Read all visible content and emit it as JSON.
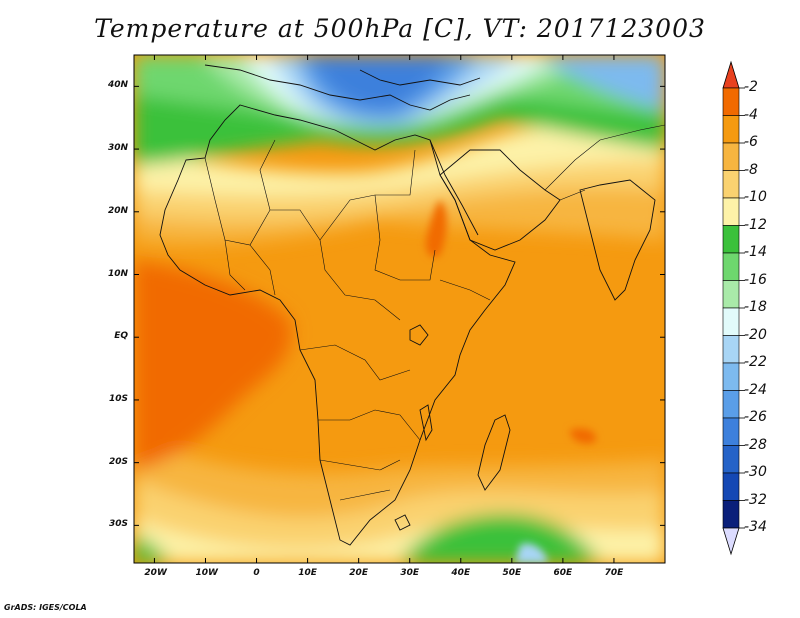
{
  "title": "Temperature at 500hPa [C], VT: 2017123003",
  "credit": "GrADS: IGES/COLA",
  "map": {
    "lon_range": [
      -24,
      80
    ],
    "lat_range": [
      -36,
      45
    ],
    "lon_ticks": [
      {
        "lon": -20,
        "label": "20W"
      },
      {
        "lon": -10,
        "label": "10W"
      },
      {
        "lon": 0,
        "label": "0"
      },
      {
        "lon": 10,
        "label": "10E"
      },
      {
        "lon": 20,
        "label": "20E"
      },
      {
        "lon": 30,
        "label": "30E"
      },
      {
        "lon": 40,
        "label": "40E"
      },
      {
        "lon": 50,
        "label": "50E"
      },
      {
        "lon": 60,
        "label": "60E"
      },
      {
        "lon": 70,
        "label": "70E"
      }
    ],
    "lat_ticks": [
      {
        "lat": 40,
        "label": "40N"
      },
      {
        "lat": 30,
        "label": "30N"
      },
      {
        "lat": 20,
        "label": "20N"
      },
      {
        "lat": 10,
        "label": "10N"
      },
      {
        "lat": 0,
        "label": "EQ"
      },
      {
        "lat": -10,
        "label": "10S"
      },
      {
        "lat": -20,
        "label": "20S"
      },
      {
        "lat": -30,
        "label": "30S"
      }
    ]
  },
  "colorbar": {
    "levels": [
      "-2",
      "-4",
      "-6",
      "-8",
      "-10",
      "-12",
      "-14",
      "-16",
      "-18",
      "-20",
      "-22",
      "-24",
      "-26",
      "-28",
      "-30",
      "-32",
      "-34"
    ],
    "colors": [
      "#ee4422",
      "#f16a00",
      "#f59a10",
      "#f7b540",
      "#fad270",
      "#fdf2a8",
      "#3bc13b",
      "#6ed76e",
      "#a9eaa9",
      "#e2fbfb",
      "#a8d5f5",
      "#7dbaef",
      "#5a9ee8",
      "#3d80dc",
      "#2563c8",
      "#1448b4",
      "#0a1f7a"
    ],
    "top_color": "#e8411f",
    "bottom_color": "#dcdcff"
  }
}
